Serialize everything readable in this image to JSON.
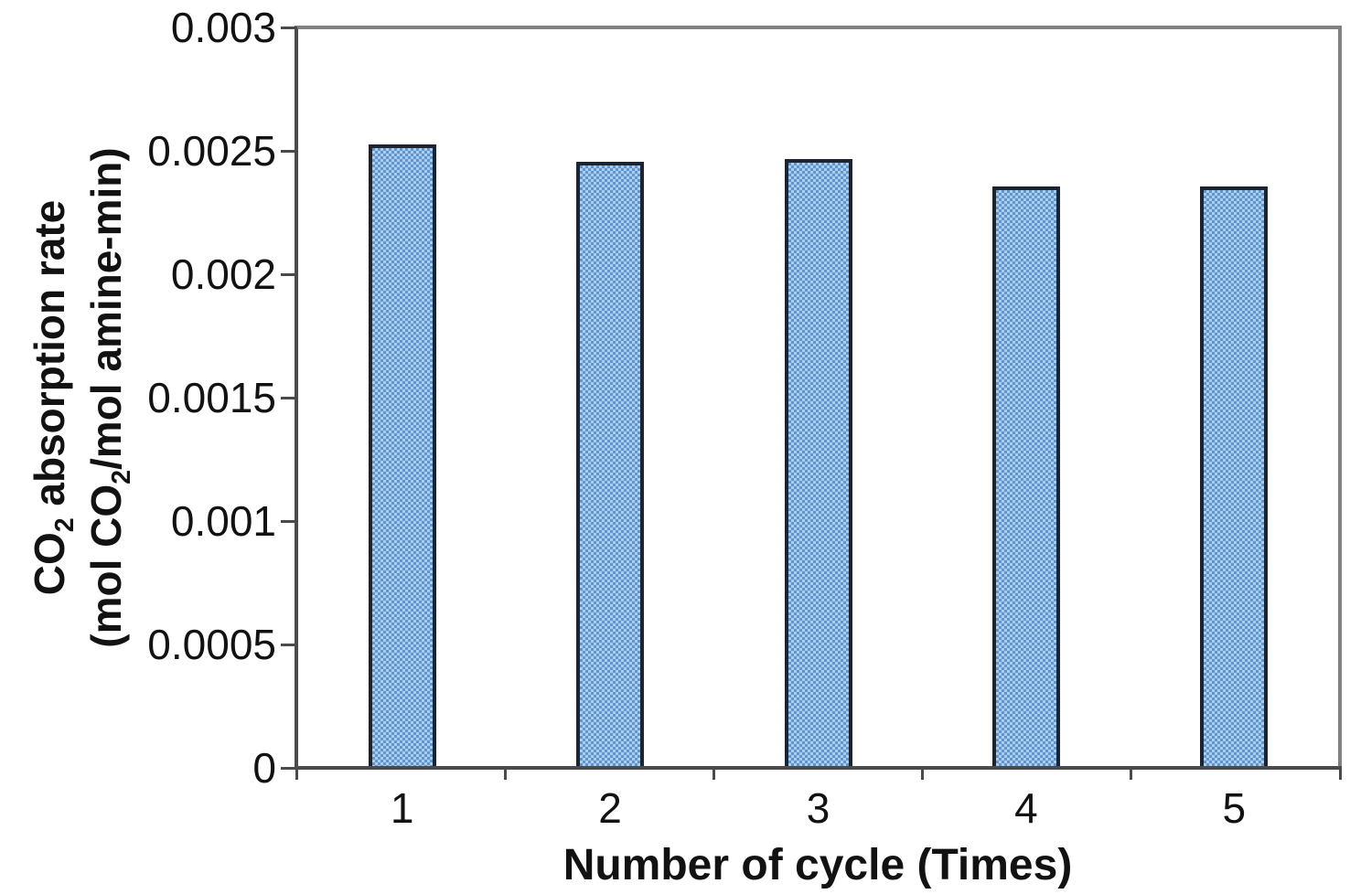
{
  "figure": {
    "background": "#ffffff",
    "frame_color": "#818181",
    "axis_color": "#4a4a4a",
    "text_color": "#121212",
    "bar_border_color": "#1b2430",
    "bar_fill_light": "#a9cdf0",
    "bar_fill_dark": "#6296cb"
  },
  "chart_data": {
    "type": "bar",
    "categories": [
      "1",
      "2",
      "3",
      "4",
      "5"
    ],
    "values": [
      0.00253,
      0.00246,
      0.00247,
      0.00236,
      0.00236
    ],
    "title": "",
    "xlabel": "Number of cycle (Times)",
    "ylabel": "CO2 absorption rate (mol CO2/mol amine-min)",
    "ylim": [
      0,
      0.003
    ],
    "y_ticks": [
      0,
      0.0005,
      0.001,
      0.0015,
      0.002,
      0.0025,
      0.003
    ],
    "y_tick_labels": [
      "0",
      "0.0005",
      "0.001",
      "0.0015",
      "0.002",
      "0.0025",
      "0.003"
    ],
    "grid": false,
    "legend_position": "none",
    "bar_style": "checkered-blue"
  },
  "y_axis": {
    "title_lines": [
      [
        {
          "text": "CO"
        },
        {
          "text": "2",
          "sub": true
        },
        {
          "text": " absorption rate"
        }
      ],
      [
        {
          "text": "(mol CO"
        },
        {
          "text": "2",
          "sub": true
        },
        {
          "text": "/mol amine-min)"
        }
      ]
    ]
  },
  "x_axis": {
    "title": "Number of cycle (Times)"
  }
}
